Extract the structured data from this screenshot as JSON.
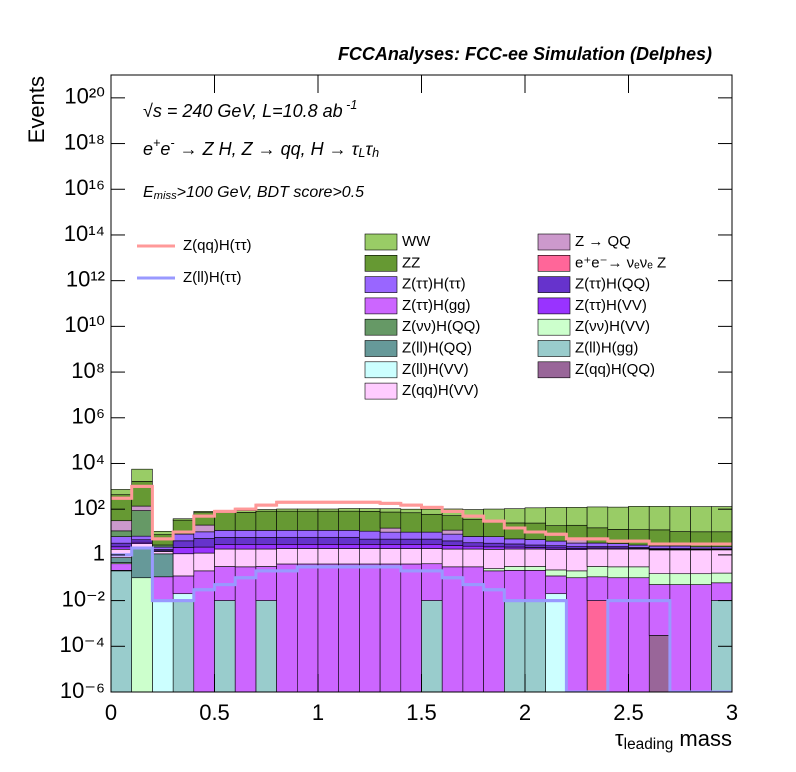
{
  "chart_data": {
    "type": "stacked_histogram",
    "title": "FCCAnalyses: FCC-ee Simulation (Delphes)",
    "y_label": "Events",
    "x_label": [
      {
        "t": "τ"
      },
      {
        "sub": "leading"
      },
      {
        "t": " mass"
      }
    ],
    "annotations": [
      [
        {
          "t": "√s = 240 GeV, L=10.8 ab"
        },
        {
          "sup": " -1"
        }
      ],
      [
        {
          "t": "e"
        },
        {
          "sup": "+"
        },
        {
          "t": "e"
        },
        {
          "sup": "-"
        },
        {
          "t": " → Z H, Z  → qq, H  → τ"
        },
        {
          "sub": "L"
        },
        {
          "t": "τ"
        },
        {
          "sub": "h"
        }
      ],
      [
        {
          "t": "E"
        },
        {
          "sub": "miss"
        },
        {
          "t": ">100 GeV, BDT score>0.5"
        }
      ]
    ],
    "log_y": true,
    "xlim": [
      0,
      3
    ],
    "ylim": [
      1e-06,
      1e+21
    ],
    "xticks": [
      0,
      0.5,
      1,
      1.5,
      2,
      2.5,
      3
    ],
    "yticks": [
      {
        "value": 1e-06,
        "label": "10⁻⁶"
      },
      {
        "value": 0.0001,
        "label": "10⁻⁴"
      },
      {
        "value": 0.01,
        "label": "10⁻²"
      },
      1,
      {
        "value": 100,
        "label": "10²"
      },
      {
        "value": 10000,
        "label": "10⁴"
      },
      {
        "value": 1000000.0,
        "label": "10⁶"
      },
      {
        "value": 100000000.0,
        "label": "10⁸"
      },
      {
        "value": 10000000000.0,
        "label": "10¹⁰"
      },
      {
        "value": 1000000000000.0,
        "label": "10¹²"
      },
      {
        "value": 100000000000000.0,
        "label": "10¹⁴"
      },
      {
        "value": 1e+16,
        "label": "10¹⁶"
      },
      {
        "value": 1e+18,
        "label": "10¹⁸"
      },
      {
        "value": 1e+20,
        "label": "10²⁰"
      }
    ],
    "bins": [
      0,
      0.1,
      0.2,
      0.3,
      0.4,
      0.5,
      0.6,
      0.7,
      0.8,
      0.9,
      1,
      1.1,
      1.2,
      1.3,
      1.4,
      1.5,
      1.6,
      1.7,
      1.8,
      1.9,
      2,
      2.1,
      2.2,
      2.3,
      2.4,
      2.5,
      2.6,
      2.7,
      2.8,
      2.9,
      3
    ],
    "series": [
      {
        "name": "Z(ll)H(gg)",
        "color": "#99cccc",
        "values": [
          0.2,
          0,
          0,
          0.01,
          0,
          0.01,
          0,
          0.01,
          0,
          0,
          0,
          0,
          0,
          0,
          0,
          0.01,
          0,
          0,
          0,
          0.01,
          0.01,
          0,
          0,
          0,
          0,
          0,
          0,
          0,
          0,
          0.01
        ]
      },
      {
        "name": "Z(ll)H(VV)",
        "color": "#ccffff",
        "values": [
          0,
          0,
          0.01,
          0.01,
          0,
          0,
          0,
          0,
          0,
          0,
          0,
          0,
          0,
          0,
          0,
          0,
          0,
          0,
          0,
          0,
          0,
          0.02,
          0,
          0,
          0,
          0,
          0,
          0,
          0,
          0
        ]
      },
      {
        "name": "e⁺e⁻→ νₑνₑ Z",
        "color": "#ff6699",
        "values": [
          0.01,
          0,
          0,
          0,
          0,
          0,
          0,
          0,
          0,
          0,
          0,
          0,
          0,
          0,
          0,
          0,
          0,
          0,
          0,
          0,
          0,
          0,
          0,
          0.01,
          0,
          0,
          0,
          0,
          0,
          0
        ]
      },
      {
        "name": "Z(qq)H(QQ)",
        "color": "#996699",
        "values": [
          0,
          0,
          0,
          0,
          0,
          0,
          0,
          0,
          0,
          0,
          0,
          0,
          0,
          0,
          0,
          0,
          0,
          0,
          0,
          0,
          0,
          0,
          0,
          0,
          0,
          0,
          0.0003,
          0,
          0,
          0
        ]
      },
      {
        "name": "Z(ττ)H(gg)",
        "color": "#cc66ff",
        "values": [
          0.2,
          0,
          0.1,
          0.1,
          0.2,
          0.3,
          0.3,
          0.3,
          0.4,
          0.4,
          0.4,
          0.4,
          0.4,
          0.4,
          0.4,
          0.4,
          0.3,
          0.3,
          0.2,
          0.2,
          0.2,
          0.1,
          0.1,
          0.1,
          0.1,
          0.1,
          0.05,
          0.05,
          0.05,
          0.05
        ]
      },
      {
        "name": "Z(νν)H(VV)",
        "color": "#ccffcc",
        "values": [
          0.05,
          0.1,
          0,
          0,
          0,
          0,
          0,
          0,
          0,
          0,
          0,
          0,
          0,
          0,
          0,
          0,
          0,
          0,
          0.05,
          0.1,
          0.1,
          0.1,
          0.1,
          0.2,
          0.2,
          0.2,
          0.1,
          0.1,
          0.1,
          0.1
        ]
      },
      {
        "name": "Z(ll)H(QQ)",
        "color": "#669999",
        "values": [
          0.3,
          2,
          1,
          0,
          0,
          0,
          0,
          0,
          0,
          0,
          0,
          0,
          0,
          0,
          0,
          0,
          0,
          0,
          0,
          0,
          0,
          0,
          0,
          0,
          0,
          0,
          0,
          0,
          0,
          0
        ]
      },
      {
        "name": "Z(qq)H(VV)",
        "color": "#ffccff",
        "values": [
          1,
          1,
          0.3,
          1,
          1,
          1.5,
          1.5,
          1.5,
          1.5,
          1.5,
          1.5,
          1.5,
          1.5,
          1.5,
          1.5,
          1.5,
          1.5,
          1.5,
          1.5,
          1.5,
          1.5,
          1.5,
          1.5,
          1.5,
          1.5,
          1.5,
          1.5,
          1.5,
          1.5,
          1.5
        ]
      },
      {
        "name": "Z(ττ)H(VV)",
        "color": "#9933ff",
        "values": [
          0.5,
          0.5,
          0.1,
          1,
          1,
          1,
          1,
          1,
          1,
          1,
          1,
          1,
          1,
          1,
          1,
          1,
          0.8,
          0.6,
          0.5,
          0.4,
          0.3,
          0.3,
          0.2,
          0.2,
          0.2,
          0.1,
          0.1,
          0.1,
          0.1,
          0.1
        ]
      },
      {
        "name": "Z(ττ)H(QQ)",
        "color": "#6633cc",
        "values": [
          1,
          1,
          0.2,
          2,
          3,
          3,
          3,
          3,
          3,
          3,
          3,
          3,
          2,
          2,
          2,
          2,
          1.5,
          1,
          1,
          0.8,
          0.6,
          0.5,
          0.4,
          0.3,
          0.3,
          0.2,
          0.2,
          0.2,
          0.1,
          0.1
        ]
      },
      {
        "name": "Z(ττ)H(ττ)",
        "color": "#9966ff",
        "values": [
          3,
          2,
          0.5,
          4,
          5,
          6,
          6,
          6,
          6,
          6,
          6,
          6,
          6,
          5,
          5,
          5,
          4,
          3,
          3,
          2,
          2,
          1.5,
          1,
          1,
          0.8,
          0.6,
          0.5,
          0.5,
          0.4,
          0.4
        ]
      },
      {
        "name": "Z(νν)H(QQ)",
        "color": "#669966",
        "values": [
          5,
          80,
          0.5,
          0,
          0,
          0,
          0,
          0,
          0,
          0,
          0,
          0,
          0,
          0,
          0,
          0,
          0,
          0,
          0,
          0,
          0,
          0,
          0,
          0,
          0,
          0,
          0,
          0,
          0,
          0
        ]
      },
      {
        "name": "Z → QQ",
        "color": "#cc99cc",
        "values": [
          20,
          50,
          0,
          0,
          10,
          0,
          0,
          0,
          0,
          0,
          0,
          0,
          0,
          5,
          0,
          0,
          4,
          0,
          0,
          0,
          0,
          0,
          1.5,
          0,
          0,
          0,
          0,
          0,
          0,
          0
        ]
      },
      {
        "name": "ZZ",
        "color": "#669933",
        "values": [
          400,
          1500,
          5,
          25,
          50,
          60,
          60,
          70,
          70,
          70,
          70,
          70,
          70,
          60,
          60,
          50,
          40,
          30,
          25,
          20,
          20,
          15,
          15,
          12,
          10,
          10,
          10,
          8,
          8,
          8
        ]
      },
      {
        "name": "WW",
        "color": "#99cc66",
        "values": [
          300,
          4000,
          3,
          5,
          10,
          10,
          15,
          15,
          20,
          20,
          20,
          25,
          25,
          30,
          30,
          40,
          50,
          60,
          70,
          80,
          90,
          100,
          100,
          110,
          110,
          120,
          120,
          120,
          120,
          120
        ]
      }
    ],
    "lines": [
      {
        "name": "Z(qq)H(ττ)",
        "color": "#ff9999",
        "values": [
          300,
          1000,
          5,
          10,
          50,
          80,
          100,
          150,
          200,
          200,
          200,
          200,
          200,
          180,
          150,
          120,
          80,
          50,
          30,
          15,
          10,
          8,
          5,
          5,
          4,
          4,
          3,
          3,
          3,
          3
        ]
      },
      {
        "name": "Z(ll)H(ττ)",
        "color": "#9999ff",
        "values": [
          1,
          2,
          0.01,
          0.01,
          0.03,
          0.05,
          0.1,
          0.2,
          0.2,
          0.3,
          0.3,
          0.3,
          0.3,
          0.3,
          0.2,
          0.2,
          0.1,
          0.05,
          0.03,
          0.01,
          0.01,
          0.01,
          0,
          0,
          0.01,
          0.01,
          0.01,
          0,
          0,
          0
        ]
      }
    ]
  }
}
